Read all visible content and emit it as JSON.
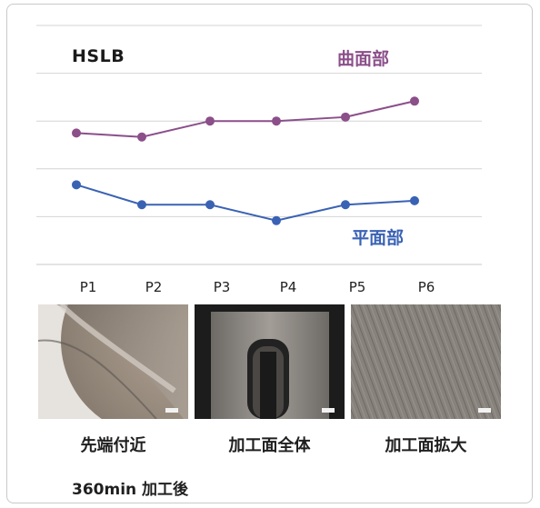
{
  "colors": {
    "curve": "#8b4f8a",
    "flat": "#3a62b4",
    "grid": "#d4d4d4"
  },
  "chart_data": {
    "type": "line",
    "title": "HSLB",
    "categories": [
      "P1",
      "P2",
      "P3",
      "P4",
      "P5",
      "P6"
    ],
    "series": [
      {
        "name": "曲面部",
        "values": [
          7.7,
          7.8,
          7.4,
          7.4,
          7.3,
          6.9
        ]
      },
      {
        "name": "平面部",
        "values": [
          9.0,
          9.5,
          9.5,
          9.9,
          9.5,
          9.4
        ]
      }
    ],
    "ylim": [
      5.0,
      11.0
    ],
    "y_reversed": true,
    "grid": true,
    "tick_labels_y": false
  },
  "photos": [
    {
      "icon": "tool-tip-photo",
      "caption": "先端付近"
    },
    {
      "icon": "machined-surface-photo",
      "caption": "加工面全体"
    },
    {
      "icon": "surface-closeup-photo",
      "caption": "加工面拡大"
    }
  ],
  "footer": "360min 加工後"
}
